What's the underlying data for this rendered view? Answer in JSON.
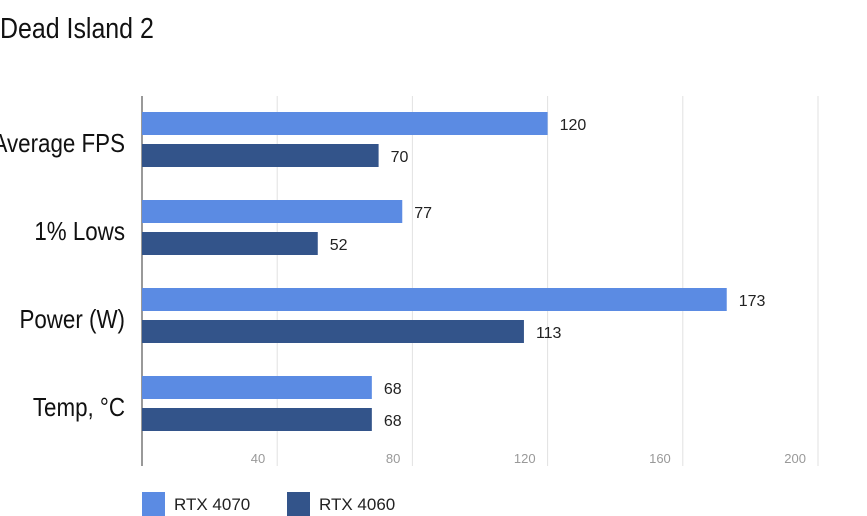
{
  "chart_data": {
    "type": "bar",
    "orientation": "horizontal",
    "title": "Dead Island 2",
    "categories": [
      "Average FPS",
      "1% Lows",
      "Power (W)",
      "Temp, °C"
    ],
    "series": [
      {
        "name": "RTX 4070",
        "color": "#5b8be3",
        "values": [
          120,
          77,
          173,
          68
        ]
      },
      {
        "name": "RTX 4060",
        "color": "#33548a",
        "values": [
          70,
          52,
          113,
          68
        ]
      }
    ],
    "xticks": [
      40,
      80,
      120,
      160,
      200
    ],
    "xlim": [
      0,
      200
    ],
    "grid": true,
    "legend": "bottom-left",
    "xlabel": "",
    "ylabel": ""
  }
}
